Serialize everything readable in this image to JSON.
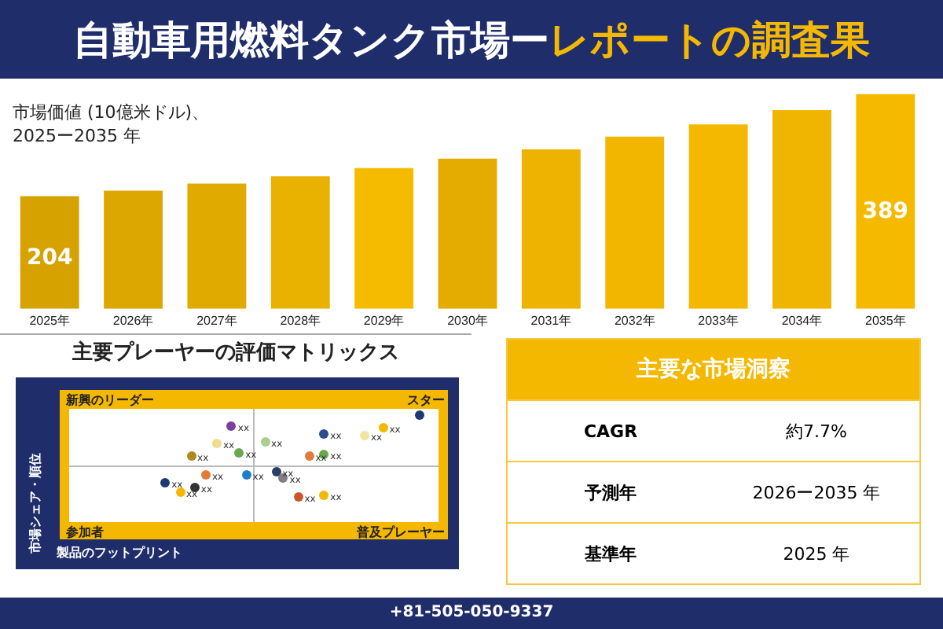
{
  "chart_data": [
    {
      "type": "bar",
      "title": "自動車用燃料タンク市場ー",
      "subtitle": "レポートの調査果",
      "ylabel": "市場価値 (10億米ドル)、\n2025ー2035 年",
      "categories": [
        "2025年",
        "2026年",
        "2027年",
        "2028年",
        "2029年",
        "2030年",
        "2031年",
        "2032年",
        "2033年",
        "2034年",
        "2035年"
      ],
      "values": [
        204,
        214,
        227,
        240,
        255,
        272,
        289,
        312,
        334,
        360,
        389
      ],
      "value_labels": [
        "204",
        null,
        null,
        null,
        null,
        null,
        null,
        null,
        null,
        null,
        "389"
      ],
      "colors": [
        "#d6a200",
        "#dca700",
        "#e0aa00",
        "#eab200",
        "#f5bb00",
        "#e4ab00",
        "#eeb300",
        "#f2b600",
        "#f4b800",
        "#f0b500",
        "#f5b900"
      ],
      "tick_labels": "x",
      "legend": false,
      "annotations": [
        "+81-505-050-9337"
      ]
    },
    {
      "type": "other",
      "title": "主要プレーヤーの評価マトリックス",
      "xlabel": "製品のフットプリント",
      "ylabel": "市場シェア・順位",
      "annotations": [
        "新興のリーダー",
        "スター",
        "参加者",
        "普及プレーヤー",
        "xx",
        "xx",
        "xx",
        "xx",
        "xx",
        "xx",
        "xx",
        "xx",
        "xx",
        "xx",
        "xx",
        "xx",
        "xx",
        "xx",
        "xx",
        "xx",
        "xx",
        "xx",
        "xx"
      ]
    },
    {
      "type": "other",
      "title": "主要な市場洞察",
      "categories": [
        "CAGR",
        "予測年",
        "基準年"
      ],
      "value_labels": [
        "約7.7%",
        "2026ー2035 年",
        "2025 年"
      ]
    }
  ]
}
